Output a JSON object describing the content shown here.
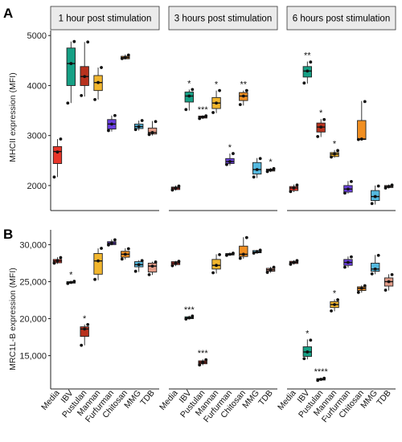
{
  "colors": {
    "Media": "#E8362A",
    "IBV": "#16A085",
    "Pustulan": "#B8321E",
    "Mannan": "#F2B62D",
    "Furfurman": "#6A3FE0",
    "Chitosan": "#F18F22",
    "MMG": "#54B8DE",
    "TDB": "#E09A86"
  },
  "chart_data": [
    {
      "type": "box",
      "panel_label": "A",
      "ylabel": "MHCII expression (MFI)",
      "ylim": [
        1500,
        5100
      ],
      "yticks": [
        2000,
        3000,
        4000,
        5000
      ],
      "ytick_labels": [
        "2000",
        "3000",
        "4000",
        "5000"
      ],
      "categories": [
        "Media",
        "IBV",
        "Pustulan",
        "Mannan",
        "Furfurman",
        "Chitosan",
        "MMG",
        "TDB"
      ],
      "facets": [
        {
          "title": "1 hour post stimulation",
          "boxes": [
            {
              "category": "Media",
              "min": 2170,
              "q1": 2440,
              "median": 2680,
              "q3": 2780,
              "max": 2930,
              "points": [
                2170,
                2670,
                2930
              ],
              "sig": ""
            },
            {
              "category": "IBV",
              "min": 3650,
              "q1": 4000,
              "median": 4440,
              "q3": 4750,
              "max": 4880,
              "points": [
                3650,
                4440,
                4880
              ],
              "sig": ""
            },
            {
              "category": "Pustulan",
              "min": 3780,
              "q1": 4000,
              "median": 4180,
              "q3": 4380,
              "max": 4870,
              "points": [
                3800,
                4180,
                4870
              ],
              "sig": ""
            },
            {
              "category": "Mannan",
              "min": 3720,
              "q1": 3900,
              "median": 4060,
              "q3": 4200,
              "max": 4360,
              "points": [
                3720,
                4060,
                4360
              ],
              "sig": ""
            },
            {
              "category": "Furfurman",
              "min": 3080,
              "q1": 3130,
              "median": 3230,
              "q3": 3320,
              "max": 3400,
              "points": [
                3100,
                3230,
                3400
              ],
              "sig": ""
            },
            {
              "category": "Chitosan",
              "min": 4520,
              "q1": 4535,
              "median": 4560,
              "q3": 4585,
              "max": 4620,
              "points": [
                4540,
                4560,
                4610
              ],
              "sig": ""
            },
            {
              "category": "MMG",
              "min": 3100,
              "q1": 3140,
              "median": 3180,
              "q3": 3230,
              "max": 3300,
              "points": [
                3120,
                3180,
                3300
              ],
              "sig": ""
            },
            {
              "category": "TDB",
              "min": 3000,
              "q1": 3030,
              "median": 3060,
              "q3": 3150,
              "max": 3290,
              "points": [
                3020,
                3060,
                3280
              ],
              "sig": ""
            }
          ]
        },
        {
          "title": "3 hours post stimulation",
          "boxes": [
            {
              "category": "Media",
              "min": 1900,
              "q1": 1920,
              "median": 1950,
              "q3": 1970,
              "max": 2000,
              "points": [
                1910,
                1950,
                1990
              ],
              "sig": ""
            },
            {
              "category": "IBV",
              "min": 3500,
              "q1": 3670,
              "median": 3790,
              "q3": 3870,
              "max": 3920,
              "points": [
                3520,
                3790,
                3920
              ],
              "sig": "*"
            },
            {
              "category": "Pustulan",
              "min": 3330,
              "q1": 3350,
              "median": 3370,
              "q3": 3390,
              "max": 3400,
              "points": [
                3340,
                3370,
                3395
              ],
              "sig": "***"
            },
            {
              "category": "Mannan",
              "min": 3450,
              "q1": 3540,
              "median": 3650,
              "q3": 3760,
              "max": 3900,
              "points": [
                3460,
                3650,
                3900
              ],
              "sig": "*"
            },
            {
              "category": "Furfurman",
              "min": 2400,
              "q1": 2440,
              "median": 2480,
              "q3": 2540,
              "max": 2640,
              "points": [
                2420,
                2480,
                2640
              ],
              "sig": "*"
            },
            {
              "category": "Chitosan",
              "min": 3600,
              "q1": 3700,
              "median": 3790,
              "q3": 3860,
              "max": 3900,
              "points": [
                3620,
                3790,
                3900
              ],
              "sig": "**"
            },
            {
              "category": "MMG",
              "min": 2150,
              "q1": 2230,
              "median": 2320,
              "q3": 2460,
              "max": 2550,
              "points": [
                2170,
                2320,
                2540
              ],
              "sig": ""
            },
            {
              "category": "TDB",
              "min": 2270,
              "q1": 2290,
              "median": 2310,
              "q3": 2330,
              "max": 2350,
              "points": [
                2280,
                2310,
                2340
              ],
              "sig": "*"
            }
          ]
        },
        {
          "title": "6 hours post stimulation",
          "boxes": [
            {
              "category": "Media",
              "min": 1870,
              "q1": 1900,
              "median": 1950,
              "q3": 1980,
              "max": 2020,
              "points": [
                1880,
                1950,
                2010
              ],
              "sig": ""
            },
            {
              "category": "IBV",
              "min": 4040,
              "q1": 4170,
              "median": 4290,
              "q3": 4380,
              "max": 4480,
              "points": [
                4050,
                4290,
                4470
              ],
              "sig": "**"
            },
            {
              "category": "Pustulan",
              "min": 2970,
              "q1": 3070,
              "median": 3170,
              "q3": 3250,
              "max": 3330,
              "points": [
                2980,
                3170,
                3320
              ],
              "sig": "*"
            },
            {
              "category": "Mannan",
              "min": 2560,
              "q1": 2580,
              "median": 2630,
              "q3": 2660,
              "max": 2710,
              "points": [
                2570,
                2630,
                2700
              ],
              "sig": "*"
            },
            {
              "category": "Furfurman",
              "min": 1840,
              "q1": 1870,
              "median": 1930,
              "q3": 2000,
              "max": 2090,
              "points": [
                1850,
                1930,
                2080
              ],
              "sig": ""
            },
            {
              "category": "Chitosan",
              "min": 2900,
              "q1": 2920,
              "median": 2930,
              "q3": 3300,
              "max": 3690,
              "points": [
                2920,
                2930,
                3680
              ],
              "sig": ""
            },
            {
              "category": "MMG",
              "min": 1620,
              "q1": 1700,
              "median": 1780,
              "q3": 1900,
              "max": 2000,
              "points": [
                1640,
                1780,
                1990
              ],
              "sig": ""
            },
            {
              "category": "TDB",
              "min": 1940,
              "q1": 1960,
              "median": 1980,
              "q3": 2000,
              "max": 2020,
              "points": [
                1950,
                1980,
                2010
              ],
              "sig": ""
            }
          ]
        }
      ]
    },
    {
      "type": "box",
      "panel_label": "B",
      "ylabel": "MRC1L-B expression (MFI)",
      "ylim": [
        10500,
        32000
      ],
      "yticks": [
        15000,
        20000,
        25000,
        30000
      ],
      "ytick_labels": [
        "15,000",
        "20,000",
        "25,000",
        "30,000"
      ],
      "categories": [
        "Media",
        "IBV",
        "Pustulan",
        "Mannan",
        "Furfurman",
        "Chitosan",
        "MMG",
        "TDB"
      ],
      "facets": [
        {
          "title": "",
          "boxes": [
            {
              "category": "Media",
              "min": 27400,
              "q1": 27550,
              "median": 27800,
              "q3": 28000,
              "max": 28300,
              "points": [
                27500,
                27800,
                28250
              ],
              "sig": ""
            },
            {
              "category": "IBV",
              "min": 24700,
              "q1": 24800,
              "median": 24900,
              "q3": 25000,
              "max": 25100,
              "points": [
                24750,
                24900,
                25050
              ],
              "sig": "*"
            },
            {
              "category": "Pustulan",
              "min": 16400,
              "q1": 17600,
              "median": 18600,
              "q3": 18900,
              "max": 19200,
              "points": [
                16400,
                18600,
                19200
              ],
              "sig": "*"
            },
            {
              "category": "Mannan",
              "min": 25200,
              "q1": 26000,
              "median": 27800,
              "q3": 28800,
              "max": 29500,
              "points": [
                25300,
                27800,
                29500
              ],
              "sig": ""
            },
            {
              "category": "Furfurman",
              "min": 29900,
              "q1": 30000,
              "median": 30200,
              "q3": 30400,
              "max": 30700,
              "points": [
                29950,
                30200,
                30650
              ],
              "sig": ""
            },
            {
              "category": "Chitosan",
              "min": 28000,
              "q1": 28300,
              "median": 28700,
              "q3": 29100,
              "max": 29500,
              "points": [
                28050,
                28700,
                29450
              ],
              "sig": ""
            },
            {
              "category": "MMG",
              "min": 26300,
              "q1": 27000,
              "median": 27300,
              "q3": 27700,
              "max": 27900,
              "points": [
                26400,
                27300,
                27850
              ],
              "sig": ""
            },
            {
              "category": "TDB",
              "min": 25900,
              "q1": 26300,
              "median": 27100,
              "q3": 27500,
              "max": 27700,
              "points": [
                25950,
                27100,
                27650
              ],
              "sig": ""
            }
          ]
        },
        {
          "title": "",
          "boxes": [
            {
              "category": "Media",
              "min": 27100,
              "q1": 27300,
              "median": 27500,
              "q3": 27700,
              "max": 27800,
              "points": [
                27150,
                27500,
                27750
              ],
              "sig": ""
            },
            {
              "category": "IBV",
              "min": 19900,
              "q1": 20000,
              "median": 20100,
              "q3": 20250,
              "max": 20400,
              "points": [
                19950,
                20100,
                20350
              ],
              "sig": "***"
            },
            {
              "category": "Pustulan",
              "min": 13700,
              "q1": 13900,
              "median": 14100,
              "q3": 14300,
              "max": 14500,
              "points": [
                13750,
                14100,
                14450
              ],
              "sig": "***"
            },
            {
              "category": "Mannan",
              "min": 26100,
              "q1": 26700,
              "median": 27200,
              "q3": 28000,
              "max": 28700,
              "points": [
                26200,
                27200,
                28650
              ],
              "sig": ""
            },
            {
              "category": "Furfurman",
              "min": 28500,
              "q1": 28600,
              "median": 28700,
              "q3": 28800,
              "max": 28900,
              "points": [
                28550,
                28700,
                28850
              ],
              "sig": ""
            },
            {
              "category": "Chitosan",
              "min": 28100,
              "q1": 28400,
              "median": 28700,
              "q3": 29800,
              "max": 31000,
              "points": [
                28150,
                28700,
                30950
              ],
              "sig": ""
            },
            {
              "category": "MMG",
              "min": 28800,
              "q1": 28900,
              "median": 29000,
              "q3": 29200,
              "max": 29300,
              "points": [
                28850,
                29000,
                29250
              ],
              "sig": ""
            },
            {
              "category": "TDB",
              "min": 26200,
              "q1": 26400,
              "median": 26600,
              "q3": 26800,
              "max": 27000,
              "points": [
                26250,
                26600,
                26950
              ],
              "sig": ""
            }
          ]
        },
        {
          "title": "",
          "boxes": [
            {
              "category": "Media",
              "min": 27300,
              "q1": 27450,
              "median": 27600,
              "q3": 27750,
              "max": 27900,
              "points": [
                27350,
                27600,
                27850
              ],
              "sig": ""
            },
            {
              "category": "IBV",
              "min": 14500,
              "q1": 14900,
              "median": 15500,
              "q3": 16200,
              "max": 17200,
              "points": [
                14600,
                15500,
                17100
              ],
              "sig": "*"
            },
            {
              "category": "Pustulan",
              "min": 11600,
              "q1": 11700,
              "median": 11800,
              "q3": 11900,
              "max": 12000,
              "points": [
                11650,
                11800,
                11950
              ],
              "sig": "****"
            },
            {
              "category": "Mannan",
              "min": 21000,
              "q1": 21500,
              "median": 21900,
              "q3": 22300,
              "max": 22600,
              "points": [
                21050,
                21900,
                22550
              ],
              "sig": "*"
            },
            {
              "category": "Furfurman",
              "min": 26900,
              "q1": 27200,
              "median": 27600,
              "q3": 28000,
              "max": 28400,
              "points": [
                26950,
                27600,
                28350
              ],
              "sig": ""
            },
            {
              "category": "Chitosan",
              "min": 23500,
              "q1": 23800,
              "median": 24100,
              "q3": 24300,
              "max": 24500,
              "points": [
                23550,
                24100,
                24450
              ],
              "sig": ""
            },
            {
              "category": "MMG",
              "min": 26000,
              "q1": 26400,
              "median": 26700,
              "q3": 27500,
              "max": 28600,
              "points": [
                26050,
                26700,
                28550
              ],
              "sig": ""
            },
            {
              "category": "TDB",
              "min": 23800,
              "q1": 24400,
              "median": 25000,
              "q3": 25500,
              "max": 26000,
              "points": [
                23850,
                25000,
                25950
              ],
              "sig": ""
            }
          ]
        }
      ]
    }
  ]
}
